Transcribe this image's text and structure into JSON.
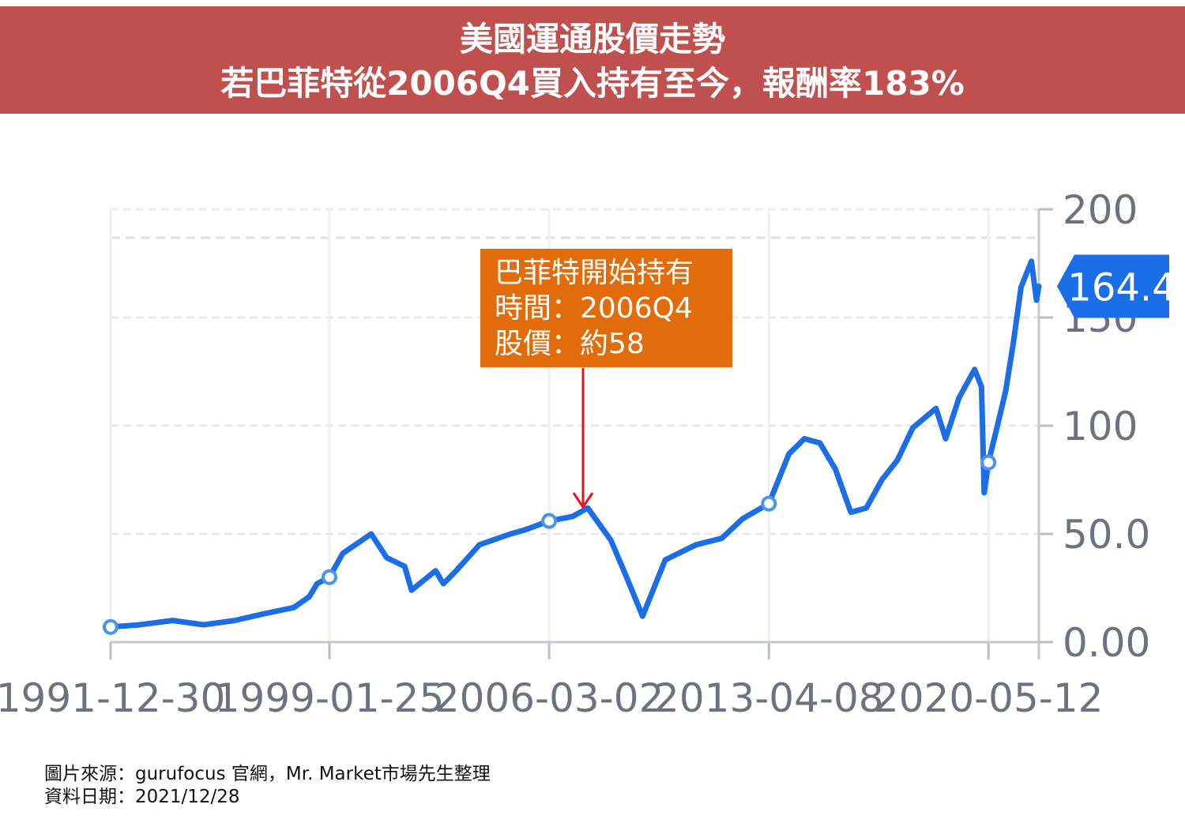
{
  "header": {
    "title_line1": "美國運通股價走勢",
    "title_line2": "若巴菲特從2006Q4買入持有至今，報酬率183%"
  },
  "annotation": {
    "line1": "巴菲特開始持有",
    "line2": "時間：2006Q4",
    "line3": "股價：約58"
  },
  "footer": {
    "source": "圖片來源：gurufocus 官網，Mr. Market市場先生整理",
    "date": "資料日期：2021/12/28"
  },
  "colors": {
    "title_bg": "#c0504d",
    "annotation_bg": "#e36c0a",
    "arrow": "#e8141b",
    "line": "#1a6ee8",
    "price_badge": "#1a6ee8"
  },
  "chart_data": {
    "type": "line",
    "title": "",
    "xlabel": "",
    "ylabel": "",
    "x_ticks": [
      "1991-12-30",
      "1999-01-25",
      "2006-03-02",
      "2013-04-08",
      "2020-05-12"
    ],
    "y_ticks": [
      "0.00",
      "50.0",
      "100",
      "150",
      "200"
    ],
    "ylim": [
      0,
      200
    ],
    "xlim": [
      "1991-12-30",
      "2021-12-28"
    ],
    "current_price_label": "164.4",
    "current_price": 164.4,
    "grid": true,
    "series": [
      {
        "x": [
          "1991-12-30",
          "1992-12-01",
          "1994-01-01",
          "1995-01-01",
          "1996-01-01",
          "1996-12-01",
          "1997-12-01",
          "1998-06-01",
          "1998-09-01",
          "1999-01-25",
          "1999-07-01",
          "2000-06-01",
          "2000-12-01",
          "2001-07-01",
          "2001-09-20",
          "2002-07-01",
          "2002-10-01",
          "2003-03-01",
          "2003-12-01",
          "2004-12-01",
          "2005-06-01",
          "2006-03-02",
          "2006-12-01",
          "2007-06-01",
          "2008-03-01",
          "2008-09-01",
          "2009-03-09",
          "2009-12-01",
          "2010-12-01",
          "2011-10-01",
          "2012-06-01",
          "2013-04-08",
          "2013-12-01",
          "2014-06-01",
          "2014-12-01",
          "2015-06-01",
          "2015-12-01",
          "2016-06-01",
          "2016-12-01",
          "2017-06-01",
          "2017-12-01",
          "2018-09-01",
          "2018-12-24",
          "2019-06-01",
          "2019-12-01",
          "2020-02-20",
          "2020-03-23",
          "2020-05-12",
          "2020-09-01",
          "2020-12-01",
          "2021-03-01",
          "2021-06-01",
          "2021-10-01",
          "2021-11-30",
          "2021-12-28"
        ],
        "y": [
          7,
          8,
          10,
          8,
          10,
          13,
          16,
          21,
          27,
          30,
          41,
          50,
          39,
          35,
          24,
          33,
          27,
          33,
          45,
          50,
          52,
          56,
          58,
          62,
          47,
          30,
          12,
          38,
          45,
          48,
          57,
          64,
          87,
          94,
          92,
          80,
          60,
          62,
          75,
          84,
          99,
          108,
          94,
          113,
          126,
          118,
          69,
          83,
          101,
          116,
          138,
          164,
          176,
          158,
          164.4
        ]
      }
    ],
    "markers_at_x": [
      "1991-12-30",
      "1999-01-25",
      "2006-03-02",
      "2013-04-08",
      "2020-05-12"
    ]
  }
}
